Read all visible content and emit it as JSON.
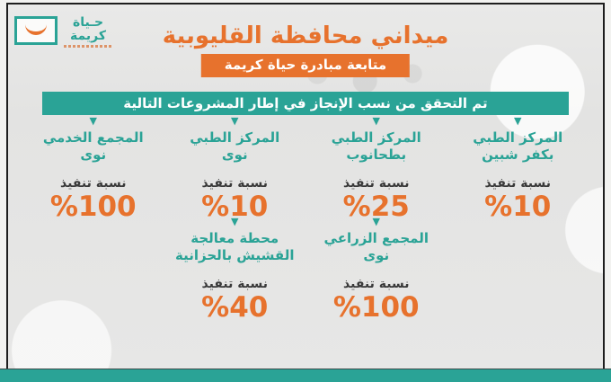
{
  "colors": {
    "teal": "#2aa396",
    "orange": "#e7722d",
    "dark_text": "#3a3a3a",
    "frame_border": "#1e1e1e",
    "background": "#e5e5e4"
  },
  "logo": {
    "line1": "حـياة",
    "line2": "كريمة"
  },
  "header": {
    "title": "ميداني محافظة القليوبية",
    "badge": "متابعة مبادرة حياة كريمة"
  },
  "banner": {
    "text": "تم التحقق من نسب الإنجاز في إطار المشروعات التالية"
  },
  "marker_icon": "▼",
  "projects_row1": [
    {
      "name_line1": "المركز الطبي",
      "name_line2": "بكفر شبين",
      "ratio_label": "نسبة تنفيذ",
      "percent": "%10"
    },
    {
      "name_line1": "المركز الطبي",
      "name_line2": "بطحانوب",
      "ratio_label": "نسبة تنفيذ",
      "percent": "%25"
    },
    {
      "name_line1": "المركز الطبي",
      "name_line2": "نوى",
      "ratio_label": "نسبة تنفيذ",
      "percent": "%10"
    },
    {
      "name_line1": "المجمع الخدمي",
      "name_line2": "نوى",
      "ratio_label": "نسبة تنفيذ",
      "percent": "%100"
    }
  ],
  "projects_row2": [
    {
      "name_line1": "المجمع الزراعي",
      "name_line2": "نوى",
      "ratio_label": "نسبة تنفيذ",
      "percent": "%100"
    },
    {
      "name_line1": "محطة معالجة",
      "name_line2": "القشيش بالحزانية",
      "ratio_label": "نسبة تنفيذ",
      "percent": "%40"
    }
  ]
}
